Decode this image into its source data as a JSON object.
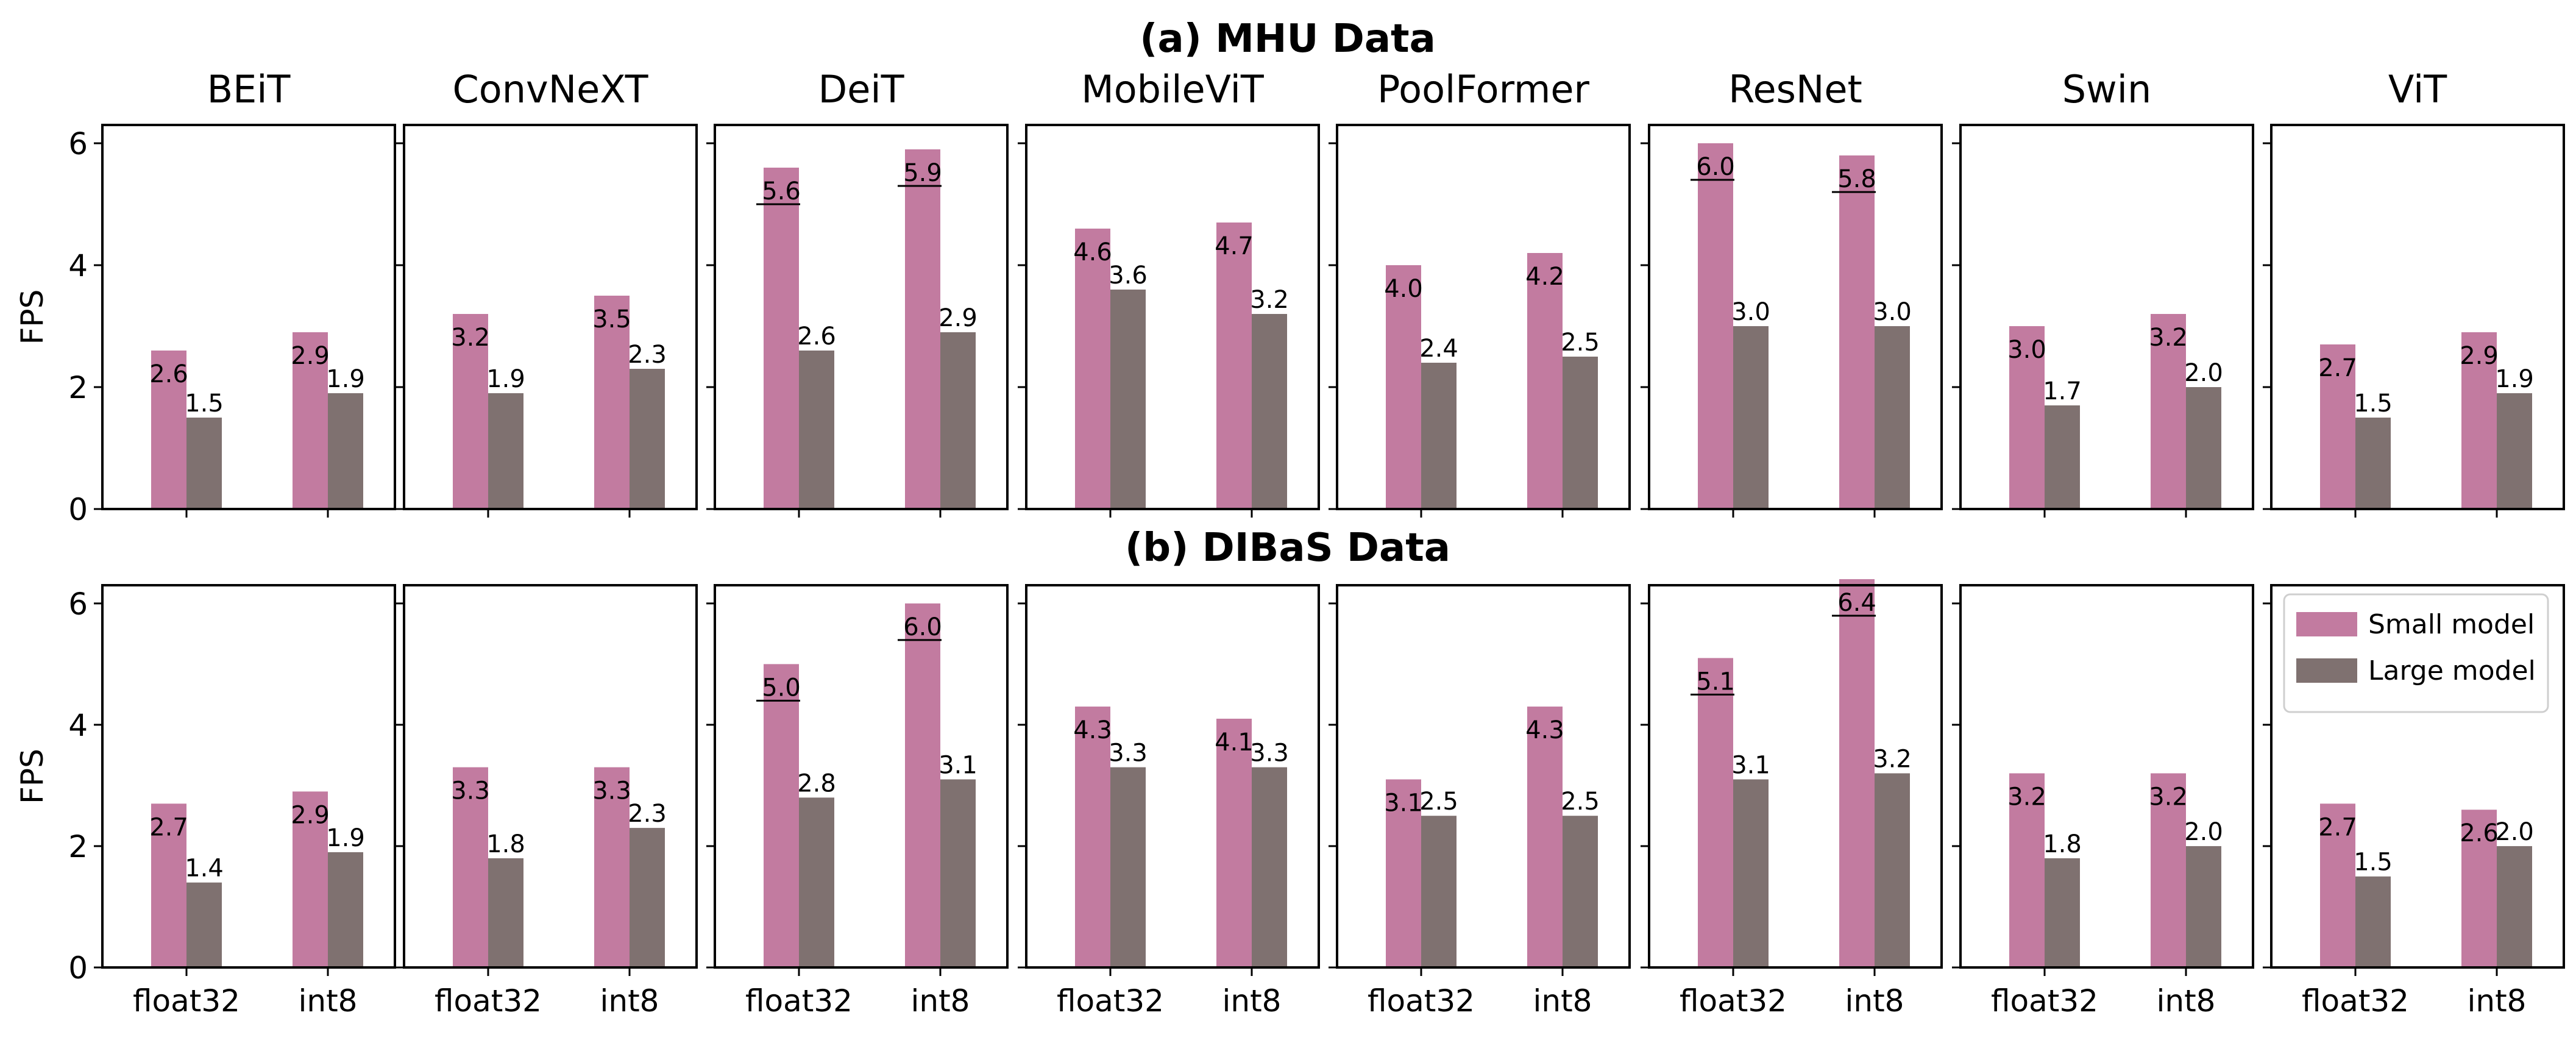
{
  "chart_data": {
    "type": "bar",
    "ylabel": "FPS",
    "ylim": [
      0,
      6.3
    ],
    "yticks": [
      0,
      2,
      4,
      6
    ],
    "categories": [
      "float32",
      "int8"
    ],
    "colors": {
      "small": "#c27ba0",
      "large": "#7f7170"
    },
    "legend": {
      "position": "upper-right of last panel",
      "entries": [
        {
          "label": "Small model",
          "color": "#c27ba0"
        },
        {
          "label": "Large model",
          "color": "#7f7170"
        }
      ]
    },
    "rows": [
      {
        "title": "(a) MHU Data",
        "panels": [
          {
            "model": "BEiT",
            "series": [
              {
                "name": "Small model",
                "values": [
                  2.6,
                  2.9
                ]
              },
              {
                "name": "Large model",
                "values": [
                  1.5,
                  1.9
                ]
              }
            ],
            "underlined": []
          },
          {
            "model": "ConvNeXT",
            "series": [
              {
                "name": "Small model",
                "values": [
                  3.2,
                  3.5
                ]
              },
              {
                "name": "Large model",
                "values": [
                  1.9,
                  2.3
                ]
              }
            ],
            "underlined": []
          },
          {
            "model": "DeiT",
            "series": [
              {
                "name": "Small model",
                "values": [
                  5.6,
                  5.9
                ]
              },
              {
                "name": "Large model",
                "values": [
                  2.6,
                  2.9
                ]
              }
            ],
            "underlined": [
              0,
              1
            ]
          },
          {
            "model": "MobileViT",
            "series": [
              {
                "name": "Small model",
                "values": [
                  4.6,
                  4.7
                ]
              },
              {
                "name": "Large model",
                "values": [
                  3.6,
                  3.2
                ]
              }
            ],
            "underlined": []
          },
          {
            "model": "PoolFormer",
            "series": [
              {
                "name": "Small model",
                "values": [
                  4.0,
                  4.2
                ]
              },
              {
                "name": "Large model",
                "values": [
                  2.4,
                  2.5
                ]
              }
            ],
            "underlined": []
          },
          {
            "model": "ResNet",
            "series": [
              {
                "name": "Small model",
                "values": [
                  6.0,
                  5.8
                ]
              },
              {
                "name": "Large model",
                "values": [
                  3.0,
                  3.0
                ]
              }
            ],
            "underlined": [
              0,
              1
            ]
          },
          {
            "model": "Swin",
            "series": [
              {
                "name": "Small model",
                "values": [
                  3.0,
                  3.2
                ]
              },
              {
                "name": "Large model",
                "values": [
                  1.7,
                  2.0
                ]
              }
            ],
            "underlined": []
          },
          {
            "model": "ViT",
            "series": [
              {
                "name": "Small model",
                "values": [
                  2.7,
                  2.9
                ]
              },
              {
                "name": "Large model",
                "values": [
                  1.5,
                  1.9
                ]
              }
            ],
            "underlined": []
          }
        ]
      },
      {
        "title": "(b) DIBaS Data",
        "panels": [
          {
            "model": "BEiT",
            "series": [
              {
                "name": "Small model",
                "values": [
                  2.7,
                  2.9
                ]
              },
              {
                "name": "Large model",
                "values": [
                  1.4,
                  1.9
                ]
              }
            ],
            "underlined": []
          },
          {
            "model": "ConvNeXT",
            "series": [
              {
                "name": "Small model",
                "values": [
                  3.3,
                  3.3
                ]
              },
              {
                "name": "Large model",
                "values": [
                  1.8,
                  2.3
                ]
              }
            ],
            "underlined": []
          },
          {
            "model": "DeiT",
            "series": [
              {
                "name": "Small model",
                "values": [
                  5.0,
                  6.0
                ]
              },
              {
                "name": "Large model",
                "values": [
                  2.8,
                  3.1
                ]
              }
            ],
            "underlined": [
              0,
              1
            ]
          },
          {
            "model": "MobileViT",
            "series": [
              {
                "name": "Small model",
                "values": [
                  4.3,
                  4.1
                ]
              },
              {
                "name": "Large model",
                "values": [
                  3.3,
                  3.3
                ]
              }
            ],
            "underlined": []
          },
          {
            "model": "PoolFormer",
            "series": [
              {
                "name": "Small model",
                "values": [
                  3.1,
                  4.3
                ]
              },
              {
                "name": "Large model",
                "values": [
                  2.5,
                  2.5
                ]
              }
            ],
            "underlined": []
          },
          {
            "model": "ResNet",
            "series": [
              {
                "name": "Small model",
                "values": [
                  5.1,
                  6.4
                ]
              },
              {
                "name": "Large model",
                "values": [
                  3.1,
                  3.2
                ]
              }
            ],
            "underlined": [
              0,
              1
            ]
          },
          {
            "model": "Swin",
            "series": [
              {
                "name": "Small model",
                "values": [
                  3.2,
                  3.2
                ]
              },
              {
                "name": "Large model",
                "values": [
                  1.8,
                  2.0
                ]
              }
            ],
            "underlined": []
          },
          {
            "model": "ViT",
            "series": [
              {
                "name": "Small model",
                "values": [
                  2.7,
                  2.6
                ]
              },
              {
                "name": "Large model",
                "values": [
                  1.5,
                  2.0
                ]
              }
            ],
            "underlined": []
          }
        ]
      }
    ]
  }
}
